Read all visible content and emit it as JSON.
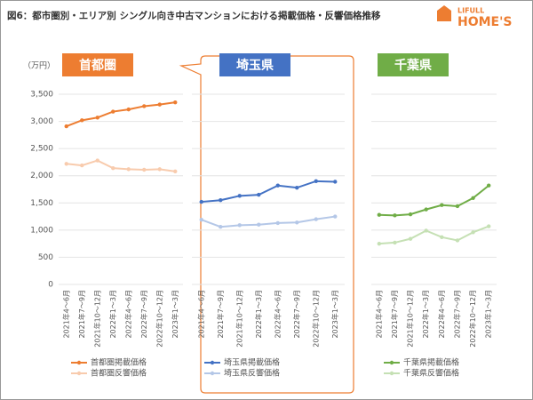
{
  "header": {
    "title": "図6：都市圏別・エリア別 シングル向き中古マンションにおける掲載価格・反響価格推移",
    "logo_top": "LIFULL",
    "logo_main": "HOME'S"
  },
  "chart_data": [
    {
      "type": "line",
      "title": "首都圏",
      "title_color": "#ed7d31",
      "y_label": "（万円）",
      "categories": [
        "2021年4～6月",
        "2021年7～9月",
        "2021年10～12月",
        "2022年1～3月",
        "2022年4～6月",
        "2022年7～9月",
        "2022年10～12月",
        "2023年1～3月"
      ],
      "series": [
        {
          "name": "首都圏掲載価格",
          "color": "#ed7d31",
          "values": [
            2910,
            3020,
            3070,
            3180,
            3220,
            3280,
            3310,
            3350
          ]
        },
        {
          "name": "首都圏反響価格",
          "color": "#f8cbad",
          "values": [
            2220,
            2190,
            2280,
            2140,
            2120,
            2110,
            2120,
            2080
          ]
        }
      ],
      "ylim": [
        0,
        3500
      ],
      "yticks": [
        0,
        {
          "value": 500,
          "label": "500"
        },
        {
          "value": 1000,
          "label": "1,000"
        },
        {
          "value": 1500,
          "label": "1,500"
        },
        {
          "value": 2000,
          "label": "2,000"
        },
        {
          "value": 2500,
          "label": "2,500"
        },
        {
          "value": 3000,
          "label": "3,000"
        },
        {
          "value": 3500,
          "label": "3,500"
        }
      ],
      "grid": true
    },
    {
      "type": "line",
      "title": "埼玉県",
      "title_color": "#4472c4",
      "categories": [
        "2021年4～6月",
        "2021年7～9月",
        "2021年10～12月",
        "2022年1～3月",
        "2022年4～6月",
        "2022年7～9月",
        "2022年10～12月",
        "2023年1～3月"
      ],
      "series": [
        {
          "name": "埼玉県掲載価格",
          "color": "#4472c4",
          "values": [
            1520,
            1550,
            1630,
            1650,
            1820,
            1780,
            1900,
            1890
          ]
        },
        {
          "name": "埼玉県反響価格",
          "color": "#b4c7e7",
          "values": [
            1190,
            1060,
            1090,
            1100,
            1130,
            1140,
            1200,
            1250
          ]
        }
      ],
      "ylim": [
        0,
        3500
      ]
    },
    {
      "type": "line",
      "title": "千葉県",
      "title_color": "#70ad47",
      "categories": [
        "2021年4～6月",
        "2021年7～9月",
        "2021年10～12月",
        "2022年1～3月",
        "2022年4～6月",
        "2022年7～9月",
        "2022年10～12月",
        "2023年1～3月"
      ],
      "series": [
        {
          "name": "千葉県掲載価格",
          "color": "#70ad47",
          "values": [
            1280,
            1270,
            1290,
            1380,
            1460,
            1440,
            1590,
            1820
          ]
        },
        {
          "name": "千葉県反響価格",
          "color": "#c5e0b4",
          "values": [
            750,
            770,
            840,
            990,
            870,
            810,
            960,
            1070
          ]
        }
      ],
      "ylim": [
        0,
        3500
      ]
    }
  ]
}
